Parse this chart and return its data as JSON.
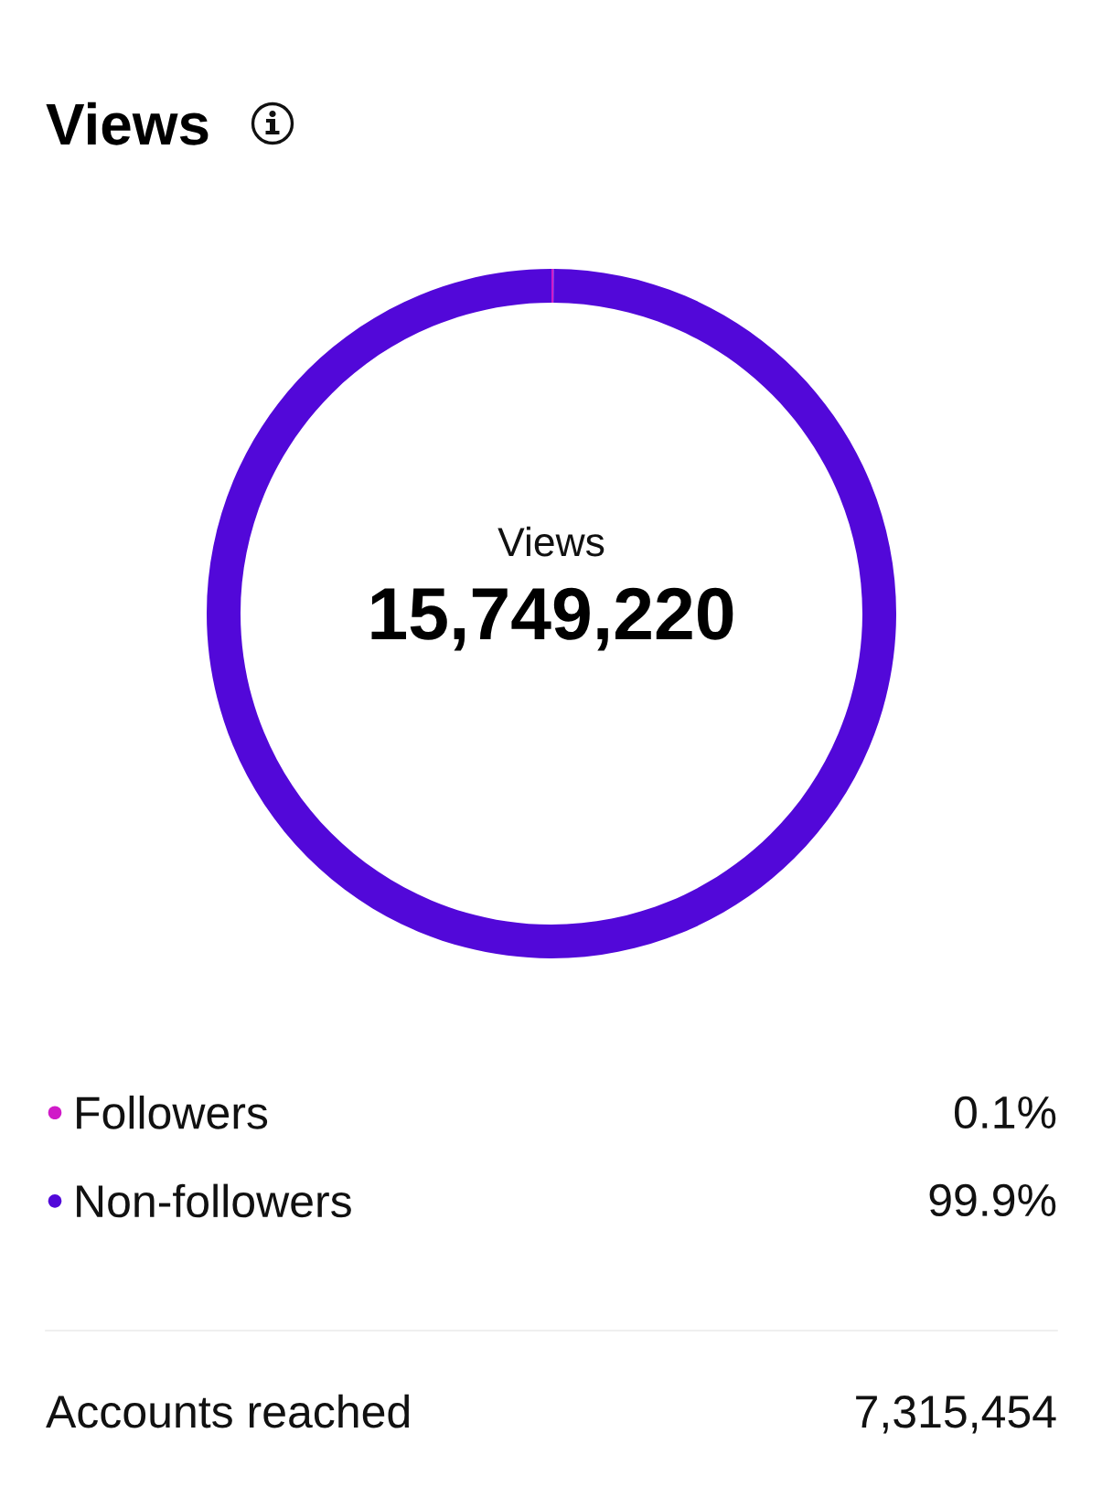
{
  "chart_data": {
    "type": "donut",
    "title": "Views",
    "categories": [
      "Followers",
      "Non-followers"
    ],
    "values": [
      0.1,
      99.9
    ],
    "colors": [
      "#d01bc8",
      "#5208d9"
    ],
    "value_labels": [
      "0.1%",
      "99.9%"
    ],
    "legend": "bottom",
    "annotations": [
      "Views",
      "15,749,220",
      "Accounts reached",
      "7,315,454"
    ]
  }
}
